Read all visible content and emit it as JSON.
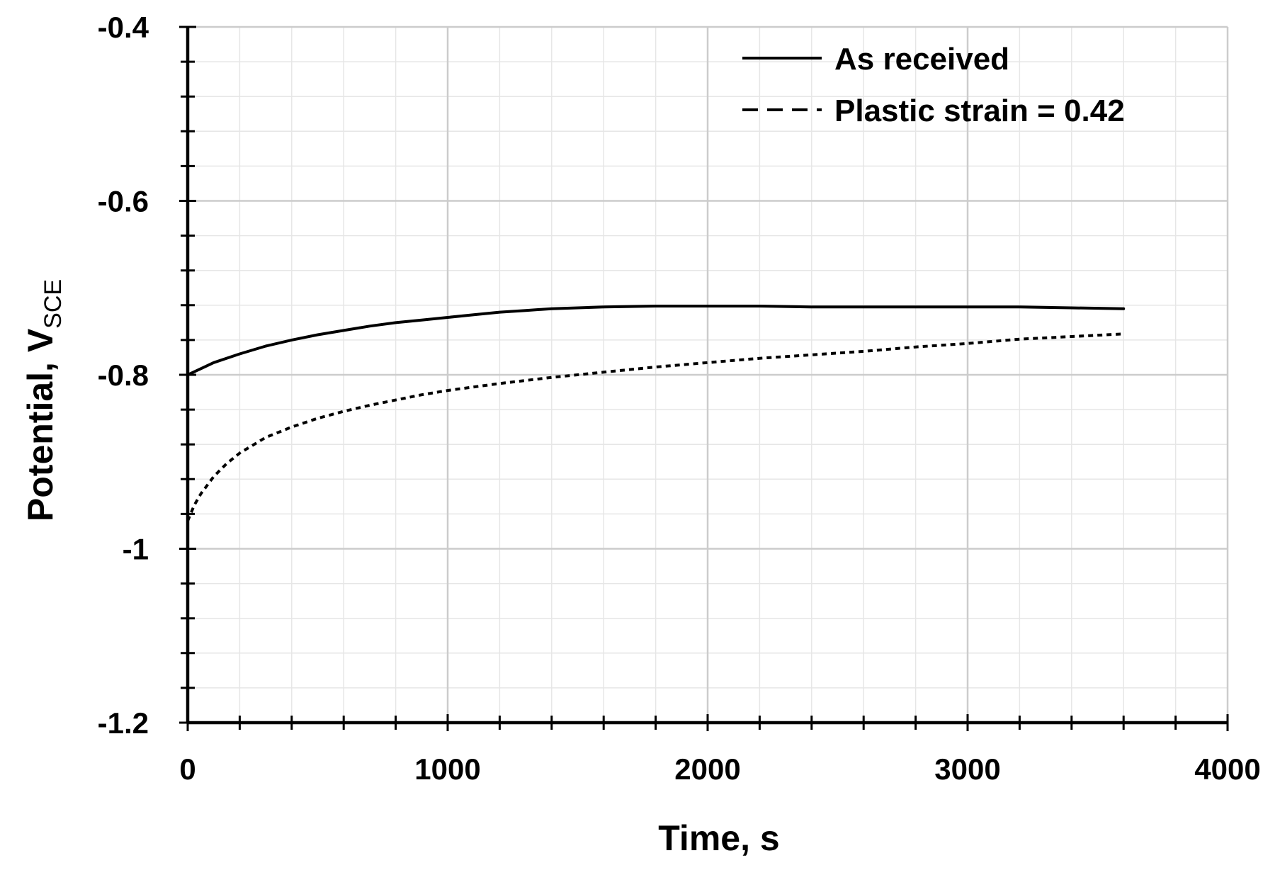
{
  "chart_data": {
    "type": "line",
    "xlabel": "Time, s",
    "ylabel": {
      "main": "Potential, V",
      "subscript": "SCE"
    },
    "xlim": [
      0,
      4000
    ],
    "ylim": [
      -1.2,
      -0.4
    ],
    "x_ticks": [
      0,
      1000,
      2000,
      3000,
      4000
    ],
    "x_tick_labels": [
      "0",
      "1000",
      "2000",
      "3000",
      "4000"
    ],
    "y_ticks": [
      -0.4,
      -0.6,
      -0.8,
      -1.0,
      -1.2
    ],
    "y_tick_labels": [
      "-0.4",
      "-0.6",
      "-0.8",
      "-1",
      "-1.2"
    ],
    "grid": true,
    "legend_position": "top-right",
    "series": [
      {
        "name": "As received",
        "style": "solid",
        "color": "#000000",
        "x": [
          0,
          50,
          100,
          200,
          300,
          400,
          500,
          600,
          700,
          800,
          900,
          1000,
          1100,
          1200,
          1300,
          1400,
          1500,
          1600,
          1800,
          2000,
          2200,
          2400,
          2600,
          2800,
          3000,
          3200,
          3400,
          3600
        ],
        "y": [
          -0.8,
          -0.793,
          -0.786,
          -0.776,
          -0.767,
          -0.76,
          -0.754,
          -0.749,
          -0.744,
          -0.74,
          -0.737,
          -0.734,
          -0.731,
          -0.728,
          -0.726,
          -0.724,
          -0.723,
          -0.722,
          -0.721,
          -0.721,
          -0.721,
          -0.722,
          -0.722,
          -0.722,
          -0.722,
          -0.722,
          -0.723,
          -0.724
        ]
      },
      {
        "name": "Plastic strain = 0.42",
        "style": "dashed",
        "color": "#000000",
        "x": [
          0,
          25,
          50,
          100,
          150,
          200,
          300,
          400,
          500,
          600,
          700,
          800,
          900,
          1000,
          1200,
          1400,
          1600,
          1800,
          2000,
          2200,
          2400,
          2600,
          2800,
          3000,
          3200,
          3400,
          3600
        ],
        "y": [
          -0.968,
          -0.95,
          -0.937,
          -0.917,
          -0.902,
          -0.89,
          -0.872,
          -0.86,
          -0.85,
          -0.842,
          -0.835,
          -0.829,
          -0.823,
          -0.818,
          -0.81,
          -0.803,
          -0.797,
          -0.791,
          -0.786,
          -0.781,
          -0.777,
          -0.773,
          -0.768,
          -0.764,
          -0.759,
          -0.756,
          -0.753
        ]
      }
    ]
  }
}
